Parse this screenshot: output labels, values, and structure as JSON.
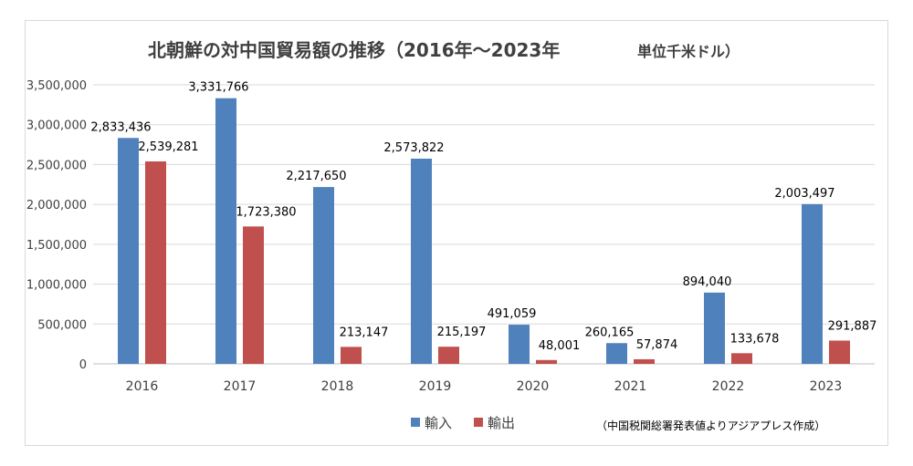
{
  "chart_data": {
    "type": "bar",
    "title": "北朝鮮の対中国貿易額の推移（2016年～2023年",
    "unit_label": "単位千米ドル）",
    "categories": [
      "2016",
      "2017",
      "2018",
      "2019",
      "2020",
      "2021",
      "2022",
      "2023"
    ],
    "series": [
      {
        "name": "輸入",
        "color": "#4f81bd",
        "values": [
          2833436,
          3331766,
          2217650,
          2573822,
          491059,
          260165,
          894040,
          2003497
        ],
        "labels": [
          "2,833,436",
          "3,331,766",
          "2,217,650",
          "2,573,822",
          "491,059",
          "260,165",
          "894,040",
          "2,003,497"
        ]
      },
      {
        "name": "輸出",
        "color": "#c0504d",
        "values": [
          2539281,
          1723380,
          213147,
          215197,
          48001,
          57874,
          133678,
          291887
        ],
        "labels": [
          "2,539,281",
          "1,723,380",
          "213,147",
          "215,197",
          "48,001",
          "57,874",
          "133,678",
          "291,887"
        ]
      }
    ],
    "ylim": [
      0,
      3500000
    ],
    "yticks": [
      0,
      500000,
      1000000,
      1500000,
      2000000,
      2500000,
      3000000,
      3500000
    ],
    "ytick_labels": [
      "0",
      "500,000",
      "1,000,000",
      "1,500,000",
      "2,000,000",
      "2,500,000",
      "3,000,000",
      "3,500,000"
    ],
    "grid": true,
    "legend_position": "bottom",
    "source_note": "（中国税関総署発表値よりアジアプレス作成）"
  }
}
